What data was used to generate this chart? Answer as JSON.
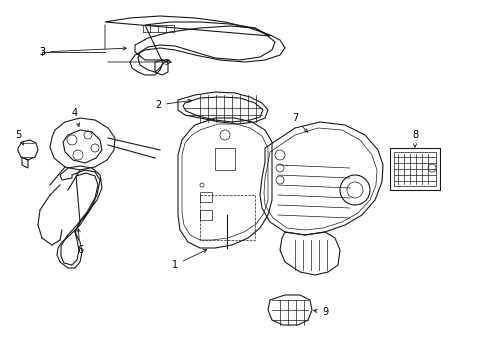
{
  "background_color": "#ffffff",
  "line_color": "#1a1a1a",
  "figsize": [
    4.89,
    3.6
  ],
  "dpi": 100,
  "xlim": [
    0,
    489
  ],
  "ylim": [
    0,
    360
  ]
}
